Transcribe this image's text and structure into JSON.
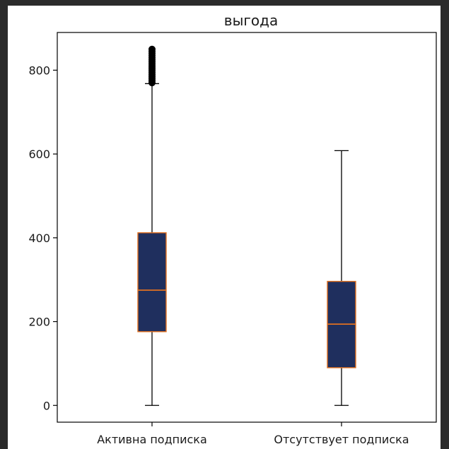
{
  "chart_data": {
    "type": "box",
    "title": "выгода",
    "xlabel": "",
    "ylabel": "",
    "categories": [
      "Активна подписка",
      "Отсутствует подписка"
    ],
    "ylim": [
      -40,
      890
    ],
    "yticks": [
      0,
      200,
      400,
      600,
      800
    ],
    "grid": false,
    "boxes": [
      {
        "category": "Активна подписка",
        "whisker_low": 0,
        "q1": 176,
        "median": 275,
        "q3": 412,
        "whisker_high": 768,
        "outliers": [
          770,
          775,
          780,
          785,
          790,
          795,
          800,
          805,
          810,
          815,
          820,
          825,
          830,
          835,
          840,
          845,
          850
        ]
      },
      {
        "category": "Отсутствует подписка",
        "whisker_low": 0,
        "q1": 90,
        "median": 194,
        "q3": 296,
        "whisker_high": 608,
        "outliers": []
      }
    ],
    "colors": {
      "box_fill": "#1f2f5e",
      "box_edge": "#e07020",
      "median": "#e07020",
      "whisker": "#000000"
    }
  }
}
